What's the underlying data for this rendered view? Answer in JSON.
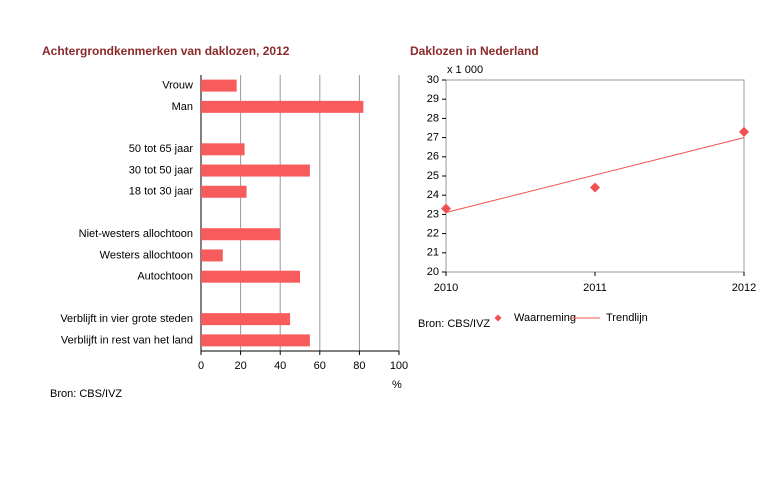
{
  "chart_data": [
    {
      "type": "bar",
      "orientation": "horizontal",
      "title": "Achtergrondkenmerken van daklozen, 2012",
      "categories": [
        "Vrouw",
        "Man",
        null,
        "50 tot 65 jaar",
        "30 tot 50 jaar",
        "18 tot 30 jaar",
        null,
        "Niet-westers allochtoon",
        "Westers allochtoon",
        "Autochtoon",
        null,
        "Verblijft in vier grote steden",
        "Verblijft in rest van het land"
      ],
      "values": [
        18,
        82,
        null,
        22,
        55,
        23,
        null,
        40,
        11,
        50,
        null,
        45,
        55
      ],
      "color": "#f75b5b",
      "xlim": [
        0,
        100
      ],
      "xticks": [
        0,
        20,
        40,
        60,
        80,
        100
      ],
      "xlabel": "%",
      "grid": true,
      "source": "Bron: CBS/IVZ"
    },
    {
      "type": "scatter",
      "title": "Daklozen in Nederland",
      "ylabel": "x 1 000",
      "series": [
        {
          "name": "Waarneming",
          "mode": "markers",
          "color": "#f0504f",
          "x": [
            2010,
            2011,
            2012
          ],
          "values": [
            23.3,
            24.4,
            27.3
          ]
        },
        {
          "name": "Trendlijn",
          "mode": "line",
          "color": "#f0504f",
          "x": [
            2010,
            2012
          ],
          "values": [
            23.1,
            27.0
          ]
        }
      ],
      "xlim": [
        2010,
        2012
      ],
      "xticks": [
        2010,
        2011,
        2012
      ],
      "ylim": [
        20,
        30
      ],
      "yticks": [
        20,
        21,
        22,
        23,
        24,
        25,
        26,
        27,
        28,
        29,
        30
      ],
      "legend": "bottom",
      "source": "Bron: CBS/IVZ"
    }
  ]
}
